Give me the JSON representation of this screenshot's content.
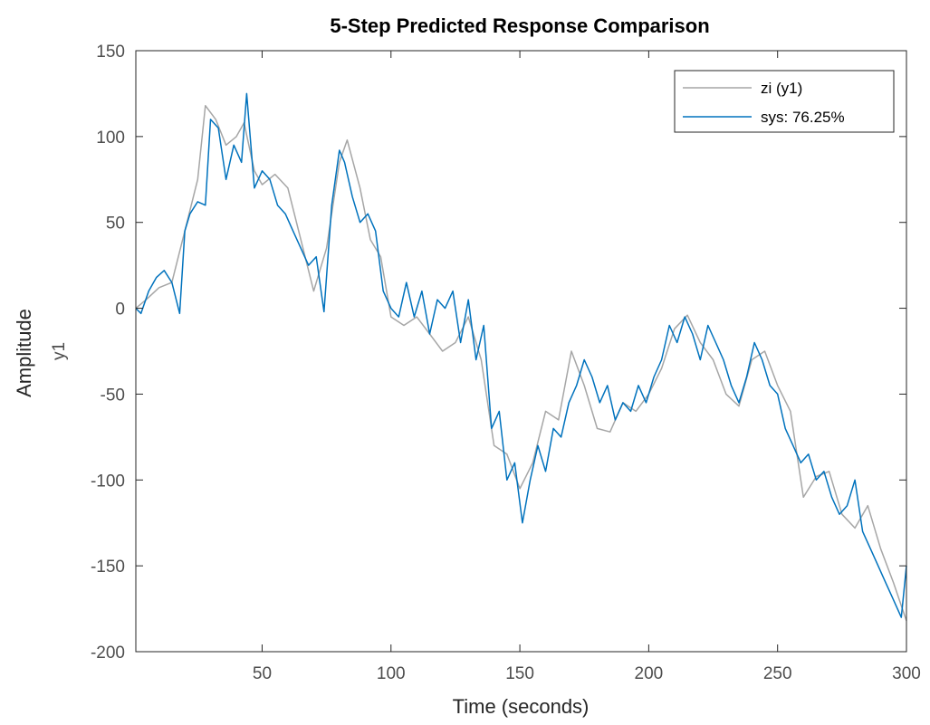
{
  "chart_data": {
    "type": "line",
    "title": "5-Step Predicted Response Comparison",
    "xlabel": "Time (seconds)",
    "ylabel": "Amplitude",
    "output_label": "y1",
    "xlim": [
      1,
      300
    ],
    "ylim": [
      -200,
      150
    ],
    "xticks": [
      50,
      100,
      150,
      200,
      250,
      300
    ],
    "yticks": [
      -200,
      -150,
      -100,
      -50,
      0,
      50,
      100,
      150
    ],
    "grid": false,
    "legend_position": "top-right",
    "series": [
      {
        "name": "zi (y1)",
        "color": "#a6a6a6",
        "x": [
          1,
          5,
          10,
          15,
          20,
          25,
          28,
          32,
          36,
          40,
          43,
          47,
          50,
          55,
          60,
          65,
          70,
          75,
          80,
          83,
          88,
          92,
          96,
          100,
          105,
          110,
          115,
          120,
          125,
          130,
          135,
          140,
          145,
          150,
          155,
          160,
          165,
          170,
          175,
          180,
          185,
          190,
          195,
          200,
          205,
          210,
          215,
          220,
          225,
          230,
          235,
          240,
          245,
          250,
          255,
          260,
          265,
          270,
          275,
          280,
          285,
          290,
          295,
          300
        ],
        "y": [
          0,
          5,
          12,
          15,
          45,
          75,
          118,
          110,
          95,
          100,
          108,
          80,
          72,
          78,
          70,
          40,
          10,
          35,
          85,
          98,
          70,
          40,
          30,
          -5,
          -10,
          -5,
          -15,
          -25,
          -20,
          -5,
          -30,
          -80,
          -85,
          -105,
          -90,
          -60,
          -65,
          -25,
          -45,
          -70,
          -72,
          -55,
          -60,
          -50,
          -35,
          -12,
          -4,
          -20,
          -30,
          -50,
          -57,
          -30,
          -25,
          -45,
          -60,
          -110,
          -98,
          -95,
          -120,
          -128,
          -115,
          -140,
          -160,
          -182
        ]
      },
      {
        "name": "sys: 76.25%",
        "color": "#0072bd",
        "x": [
          1,
          3,
          6,
          9,
          12,
          15,
          18,
          20,
          22,
          25,
          28,
          30,
          33,
          36,
          39,
          42,
          44,
          47,
          50,
          53,
          56,
          59,
          62,
          65,
          68,
          71,
          74,
          77,
          80,
          82,
          85,
          88,
          91,
          94,
          97,
          100,
          103,
          106,
          109,
          112,
          115,
          118,
          121,
          124,
          127,
          130,
          133,
          136,
          139,
          142,
          145,
          148,
          151,
          154,
          157,
          160,
          163,
          166,
          169,
          172,
          175,
          178,
          181,
          184,
          187,
          190,
          193,
          196,
          199,
          202,
          205,
          208,
          211,
          214,
          217,
          220,
          223,
          226,
          229,
          232,
          235,
          238,
          241,
          244,
          247,
          250,
          253,
          256,
          259,
          262,
          265,
          268,
          271,
          274,
          277,
          280,
          283,
          286,
          289,
          292,
          295,
          298,
          300
        ],
        "y": [
          0,
          -3,
          10,
          18,
          22,
          15,
          -3,
          45,
          55,
          62,
          60,
          110,
          105,
          75,
          95,
          85,
          125,
          70,
          80,
          75,
          60,
          55,
          45,
          35,
          25,
          30,
          -2,
          60,
          92,
          85,
          65,
          50,
          55,
          45,
          10,
          0,
          -5,
          15,
          -5,
          10,
          -15,
          5,
          0,
          10,
          -20,
          5,
          -30,
          -10,
          -70,
          -60,
          -100,
          -90,
          -125,
          -100,
          -80,
          -95,
          -70,
          -75,
          -55,
          -45,
          -30,
          -40,
          -55,
          -45,
          -65,
          -55,
          -60,
          -45,
          -55,
          -40,
          -30,
          -10,
          -20,
          -5,
          -15,
          -30,
          -10,
          -20,
          -30,
          -45,
          -55,
          -40,
          -20,
          -30,
          -45,
          -50,
          -70,
          -80,
          -90,
          -85,
          -100,
          -95,
          -110,
          -120,
          -115,
          -100,
          -130,
          -140,
          -150,
          -160,
          -170,
          -180,
          -150
        ]
      }
    ]
  }
}
